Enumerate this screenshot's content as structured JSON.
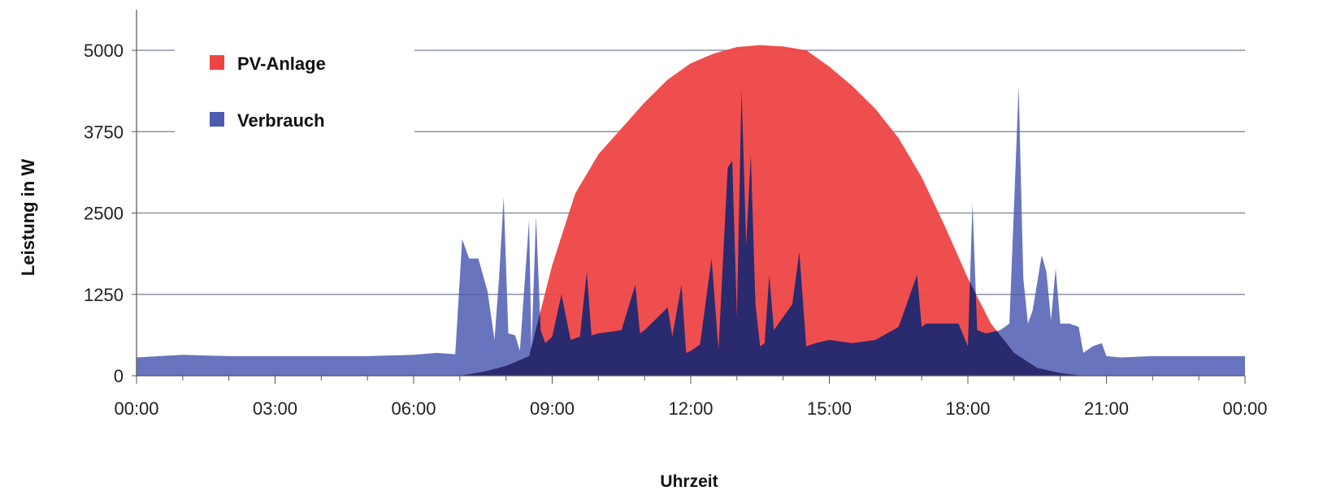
{
  "chart_data": {
    "type": "area",
    "xlabel": "Uhrzeit",
    "ylabel": "Leistung in W",
    "ylim": [
      0,
      5000
    ],
    "xlim": [
      0,
      24
    ],
    "yticks": [
      0,
      1250,
      2500,
      3750,
      5000
    ],
    "ytick_labels": [
      "0",
      "1250",
      "2500",
      "3750",
      "5000"
    ],
    "xtick_labels": [
      "00:00",
      "03:00",
      "06:00",
      "09:00",
      "12:00",
      "15:00",
      "18:00",
      "21:00",
      "00:00"
    ],
    "grid": "horizontal",
    "legend_position": "top-left",
    "series": [
      {
        "name": "PV-Anlage",
        "color": "#ee4444",
        "x": [
          7.0,
          7.5,
          8.0,
          8.5,
          9.0,
          9.5,
          10.0,
          10.5,
          11.0,
          11.5,
          12.0,
          12.5,
          13.0,
          13.5,
          14.0,
          14.5,
          15.0,
          15.5,
          16.0,
          16.5,
          17.0,
          17.5,
          18.0,
          18.5,
          19.0,
          19.5,
          20.0,
          20.5
        ],
        "values": [
          0,
          60,
          150,
          300,
          1700,
          2800,
          3400,
          3800,
          4200,
          4550,
          4800,
          4950,
          5050,
          5080,
          5060,
          5000,
          4750,
          4450,
          4100,
          3650,
          3050,
          2300,
          1500,
          800,
          350,
          120,
          40,
          0
        ]
      },
      {
        "name": "Verbrauch",
        "color": "#4d5cb2",
        "x": [
          0.0,
          1.0,
          2.0,
          3.0,
          4.0,
          5.0,
          6.0,
          6.5,
          6.9,
          7.05,
          7.2,
          7.4,
          7.6,
          7.75,
          7.85,
          7.95,
          8.05,
          8.2,
          8.3,
          8.5,
          8.55,
          8.65,
          8.75,
          8.85,
          9.0,
          9.2,
          9.4,
          9.6,
          9.75,
          9.85,
          10.0,
          10.5,
          10.8,
          10.9,
          11.0,
          11.5,
          11.6,
          11.8,
          11.9,
          12.0,
          12.2,
          12.45,
          12.6,
          12.8,
          12.9,
          13.0,
          13.1,
          13.2,
          13.3,
          13.4,
          13.5,
          13.6,
          13.7,
          13.8,
          13.9,
          14.0,
          14.2,
          14.35,
          14.5,
          14.7,
          15.0,
          15.5,
          16.0,
          16.5,
          16.9,
          17.0,
          17.1,
          17.3,
          17.8,
          18.0,
          18.1,
          18.2,
          18.4,
          18.7,
          18.9,
          19.0,
          19.1,
          19.2,
          19.3,
          19.4,
          19.6,
          19.7,
          19.8,
          19.9,
          20.0,
          20.2,
          20.4,
          20.5,
          20.7,
          20.9,
          21.0,
          21.3,
          22.0,
          23.0,
          24.0
        ],
        "values": [
          280,
          320,
          300,
          300,
          300,
          300,
          320,
          350,
          330,
          2100,
          1800,
          1800,
          1300,
          550,
          1500,
          2750,
          650,
          620,
          380,
          2400,
          400,
          2450,
          700,
          500,
          600,
          1250,
          550,
          600,
          1600,
          620,
          650,
          700,
          1400,
          650,
          700,
          1050,
          600,
          1400,
          350,
          380,
          480,
          1800,
          400,
          3200,
          3300,
          900,
          4400,
          2000,
          3400,
          1100,
          450,
          500,
          1550,
          700,
          800,
          900,
          1100,
          1900,
          450,
          500,
          550,
          500,
          550,
          750,
          1550,
          750,
          800,
          800,
          800,
          450,
          2650,
          700,
          650,
          700,
          800,
          2600,
          4450,
          1500,
          800,
          1000,
          1850,
          1600,
          850,
          1650,
          800,
          800,
          750,
          350,
          450,
          500,
          300,
          280,
          300,
          300,
          300
        ]
      }
    ]
  }
}
